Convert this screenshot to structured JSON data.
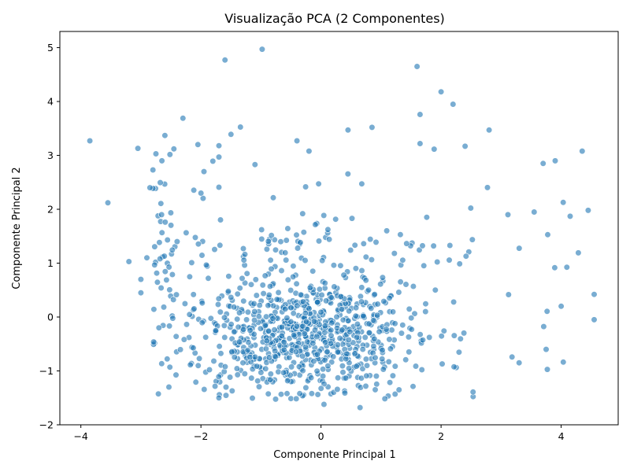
{
  "chart_data": {
    "type": "scatter",
    "title": "Visualização PCA (2 Componentes)",
    "xlabel": "Componente Principal 1",
    "ylabel": "Componente Principal 2",
    "xlim": [
      -4.35,
      4.95
    ],
    "ylim": [
      -2.0,
      5.3
    ],
    "xticks": [
      -4,
      -2,
      0,
      2,
      4
    ],
    "yticks": [
      -2,
      -1,
      0,
      1,
      2,
      3,
      4,
      5
    ],
    "grid": false,
    "legend": "none",
    "color": "#1f77b4",
    "alpha": 0.6,
    "n_points": 1000,
    "cluster_center": [
      -0.3,
      -0.3
    ],
    "outliers": [
      {
        "x": -3.85,
        "y": 3.27
      },
      {
        "x": -3.55,
        "y": 2.12
      },
      {
        "x": -3.2,
        "y": 1.03
      },
      {
        "x": -3.05,
        "y": 3.13
      },
      {
        "x": -3.0,
        "y": 0.7
      },
      {
        "x": -2.9,
        "y": 1.1
      },
      {
        "x": -2.85,
        "y": 2.4
      },
      {
        "x": -2.8,
        "y": 2.73
      },
      {
        "x": -2.75,
        "y": 3.03
      },
      {
        "x": -2.65,
        "y": 2.9
      },
      {
        "x": -2.6,
        "y": 3.37
      },
      {
        "x": -2.45,
        "y": 3.12
      },
      {
        "x": -2.3,
        "y": 3.69
      },
      {
        "x": -2.05,
        "y": 3.2
      },
      {
        "x": -2.0,
        "y": 2.3
      },
      {
        "x": -1.95,
        "y": 2.7
      },
      {
        "x": -1.7,
        "y": 3.18
      },
      {
        "x": -1.7,
        "y": 2.97
      },
      {
        "x": -1.6,
        "y": 4.77
      },
      {
        "x": -1.5,
        "y": 3.39
      },
      {
        "x": -1.1,
        "y": 2.83
      },
      {
        "x": -0.98,
        "y": 4.97
      },
      {
        "x": -0.4,
        "y": 3.27
      },
      {
        "x": -0.2,
        "y": 3.08
      },
      {
        "x": 0.45,
        "y": 3.47
      },
      {
        "x": 0.85,
        "y": 3.52
      },
      {
        "x": 1.6,
        "y": 4.65
      },
      {
        "x": 1.65,
        "y": 3.76
      },
      {
        "x": 1.65,
        "y": 3.22
      },
      {
        "x": 2.0,
        "y": 4.18
      },
      {
        "x": 2.2,
        "y": 3.95
      },
      {
        "x": 2.4,
        "y": 3.17
      },
      {
        "x": 2.8,
        "y": 3.47
      },
      {
        "x": 3.7,
        "y": 2.85
      },
      {
        "x": 3.9,
        "y": 2.9
      },
      {
        "x": 4.35,
        "y": 3.08
      },
      {
        "x": 4.45,
        "y": 1.98
      },
      {
        "x": 4.55,
        "y": 0.42
      },
      {
        "x": 4.55,
        "y": -0.05
      },
      {
        "x": 4.0,
        "y": 0.2
      },
      {
        "x": 3.75,
        "y": -0.6
      },
      {
        "x": 0.05,
        "y": -1.62
      },
      {
        "x": 0.65,
        "y": -1.68
      },
      {
        "x": 1.3,
        "y": -1.35
      },
      {
        "x": -1.7,
        "y": -1.5
      },
      {
        "x": -2.7,
        "y": -0.2
      },
      {
        "x": -3.0,
        "y": 0.45
      },
      {
        "x": 4.15,
        "y": 1.87
      },
      {
        "x": 3.3,
        "y": -0.85
      },
      {
        "x": 3.55,
        "y": 1.95
      }
    ]
  }
}
